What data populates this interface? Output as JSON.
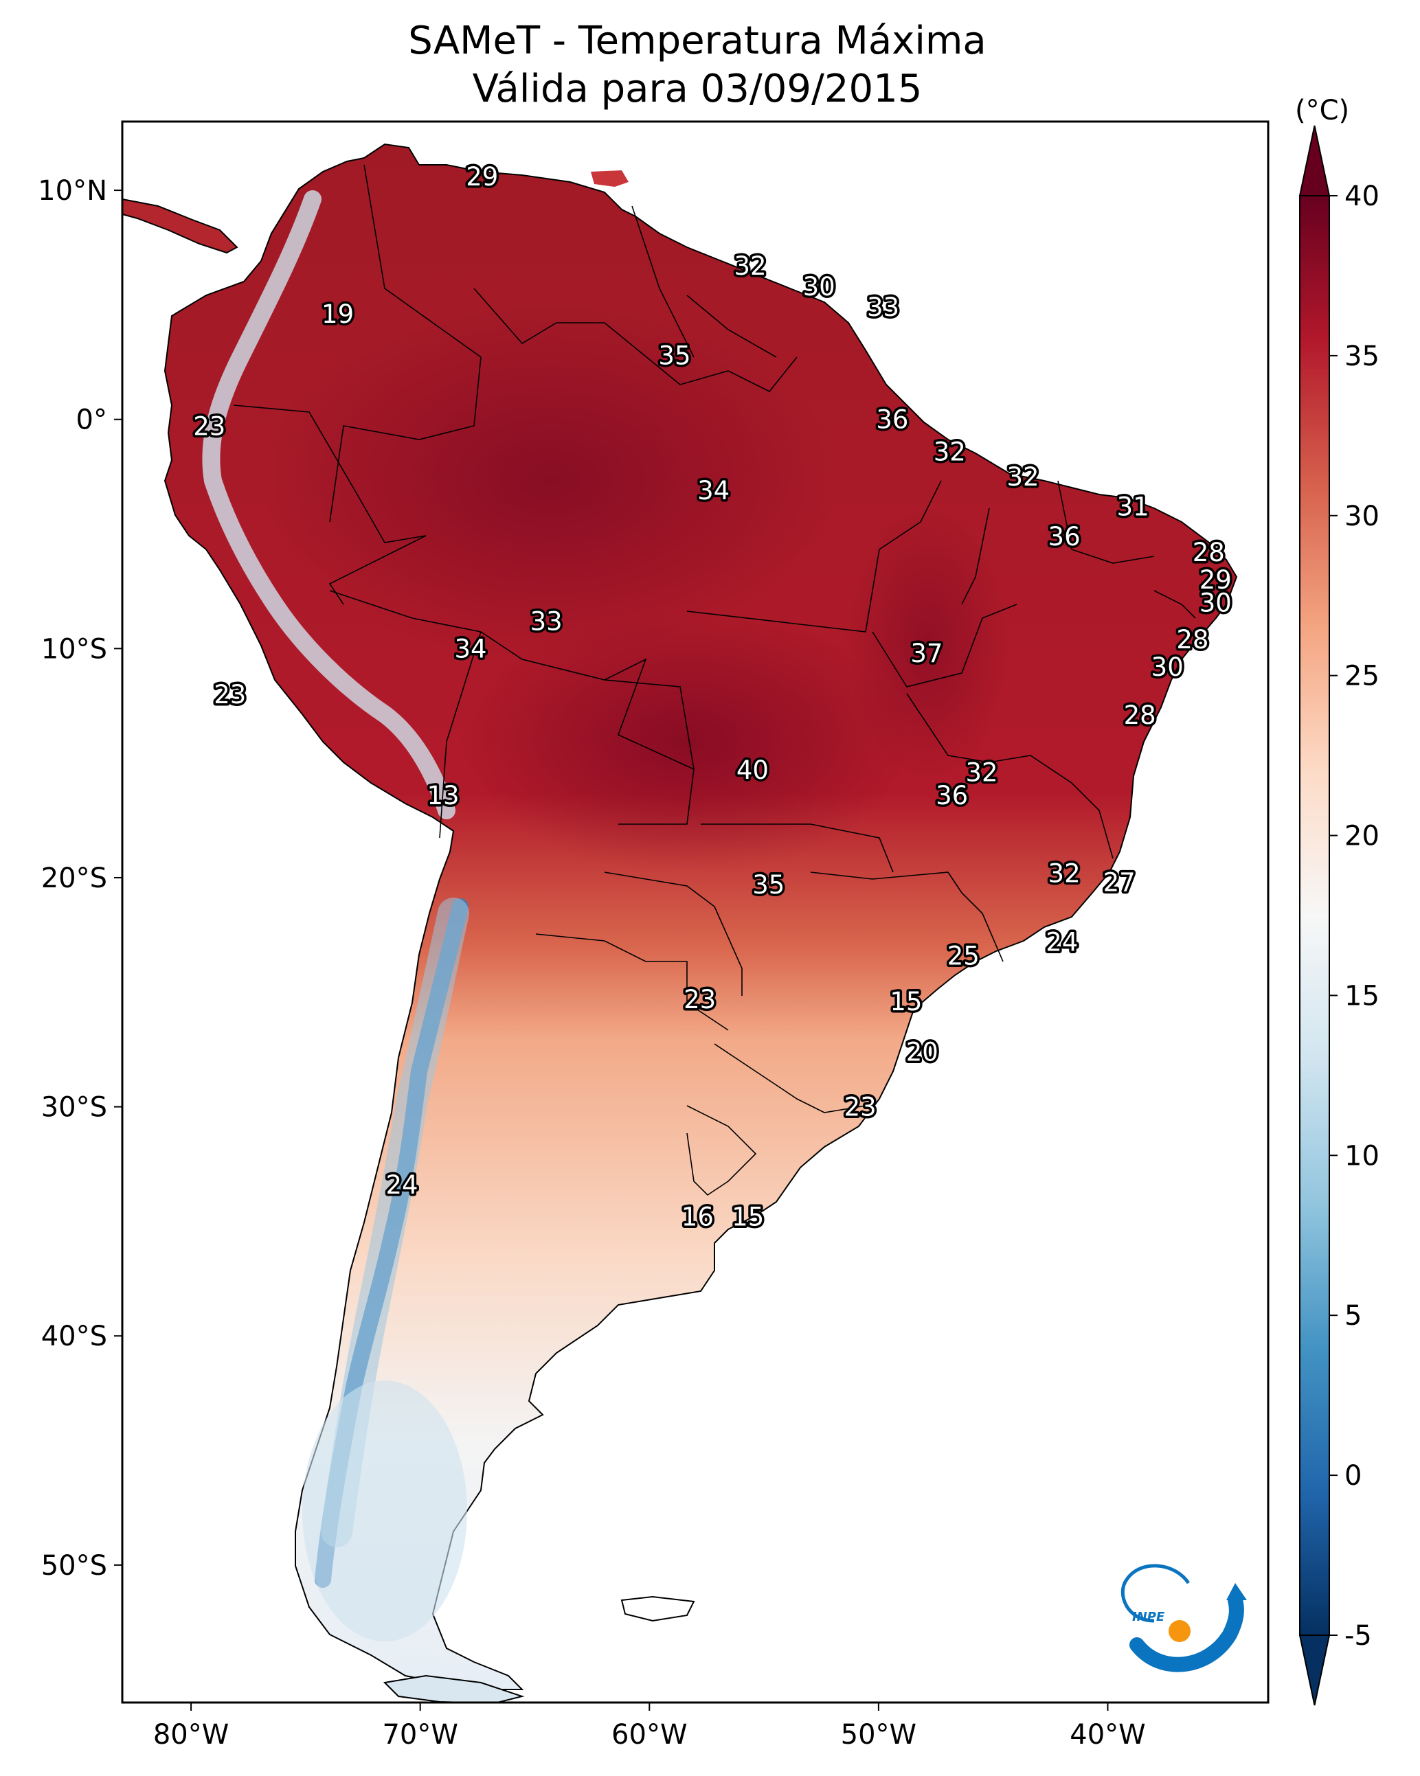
{
  "title": {
    "line1": "SAMeT - Temperatura Máxima",
    "line2": "Válida para 03/09/2015"
  },
  "map": {
    "lon_range": [
      -83,
      -33
    ],
    "lat_range": [
      -56,
      13
    ],
    "lon_ticks": [
      {
        "value": -80,
        "label": "80°W"
      },
      {
        "value": -70,
        "label": "70°W"
      },
      {
        "value": -60,
        "label": "60°W"
      },
      {
        "value": -50,
        "label": "50°W"
      },
      {
        "value": -40,
        "label": "40°W"
      }
    ],
    "lat_ticks": [
      {
        "value": 10,
        "label": "10°N"
      },
      {
        "value": 0,
        "label": "0°"
      },
      {
        "value": -10,
        "label": "10°S"
      },
      {
        "value": -20,
        "label": "20°S"
      },
      {
        "value": -30,
        "label": "30°S"
      },
      {
        "value": -40,
        "label": "40°S"
      },
      {
        "value": -50,
        "label": "50°S"
      }
    ],
    "stations": [
      {
        "lon": -67.3,
        "lat": 10.6,
        "value": "29"
      },
      {
        "lon": -55.6,
        "lat": 6.7,
        "value": "32"
      },
      {
        "lon": -52.6,
        "lat": 5.8,
        "value": "30"
      },
      {
        "lon": -49.8,
        "lat": 4.9,
        "value": "33"
      },
      {
        "lon": -73.6,
        "lat": 4.6,
        "value": "19"
      },
      {
        "lon": -58.9,
        "lat": 2.8,
        "value": "35"
      },
      {
        "lon": -49.4,
        "lat": 0.0,
        "value": "36"
      },
      {
        "lon": -79.2,
        "lat": -0.3,
        "value": "23"
      },
      {
        "lon": -46.9,
        "lat": -1.4,
        "value": "32"
      },
      {
        "lon": -43.7,
        "lat": -2.5,
        "value": "32"
      },
      {
        "lon": -57.2,
        "lat": -3.1,
        "value": "34"
      },
      {
        "lon": -38.9,
        "lat": -3.8,
        "value": "31"
      },
      {
        "lon": -41.9,
        "lat": -5.1,
        "value": "36"
      },
      {
        "lon": -35.6,
        "lat": -5.8,
        "value": "28"
      },
      {
        "lon": -35.3,
        "lat": -7.0,
        "value": "29"
      },
      {
        "lon": -35.3,
        "lat": -8.0,
        "value": "30"
      },
      {
        "lon": -64.5,
        "lat": -8.8,
        "value": "33"
      },
      {
        "lon": -36.3,
        "lat": -9.6,
        "value": "28"
      },
      {
        "lon": -67.8,
        "lat": -10.0,
        "value": "34"
      },
      {
        "lon": -47.9,
        "lat": -10.2,
        "value": "37"
      },
      {
        "lon": -37.4,
        "lat": -10.8,
        "value": "30"
      },
      {
        "lon": -78.3,
        "lat": -12.0,
        "value": "23"
      },
      {
        "lon": -38.6,
        "lat": -12.9,
        "value": "28"
      },
      {
        "lon": -55.5,
        "lat": -15.3,
        "value": "40"
      },
      {
        "lon": -45.5,
        "lat": -15.4,
        "value": "32"
      },
      {
        "lon": -69.0,
        "lat": -16.4,
        "value": "13"
      },
      {
        "lon": -46.8,
        "lat": -16.4,
        "value": "36"
      },
      {
        "lon": -41.9,
        "lat": -19.8,
        "value": "32"
      },
      {
        "lon": -39.5,
        "lat": -20.2,
        "value": "27"
      },
      {
        "lon": -54.8,
        "lat": -20.3,
        "value": "35"
      },
      {
        "lon": -42.0,
        "lat": -22.8,
        "value": "24"
      },
      {
        "lon": -46.3,
        "lat": -23.4,
        "value": "25"
      },
      {
        "lon": -57.8,
        "lat": -25.3,
        "value": "23"
      },
      {
        "lon": -48.8,
        "lat": -25.4,
        "value": "15"
      },
      {
        "lon": -48.1,
        "lat": -27.6,
        "value": "20"
      },
      {
        "lon": -50.8,
        "lat": -30.0,
        "value": "23"
      },
      {
        "lon": -70.8,
        "lat": -33.4,
        "value": "24"
      },
      {
        "lon": -57.9,
        "lat": -34.8,
        "value": "16"
      },
      {
        "lon": -55.7,
        "lat": -34.8,
        "value": "15"
      }
    ]
  },
  "colorbar": {
    "unit": "(°C)",
    "min": -5,
    "max": 40,
    "ticks": [
      "40",
      "35",
      "30",
      "25",
      "20",
      "15",
      "10",
      "5",
      "0",
      "-5"
    ],
    "colors": [
      "#053061",
      "#2166ac",
      "#4393c3",
      "#92c5de",
      "#d1e5f0",
      "#f7f7f7",
      "#fddbc7",
      "#f4a582",
      "#d6604d",
      "#b2182b",
      "#67001f"
    ]
  },
  "logo": {
    "text": "INPE",
    "colors": {
      "blue": "#0a74c0",
      "orange": "#f5960e"
    }
  }
}
